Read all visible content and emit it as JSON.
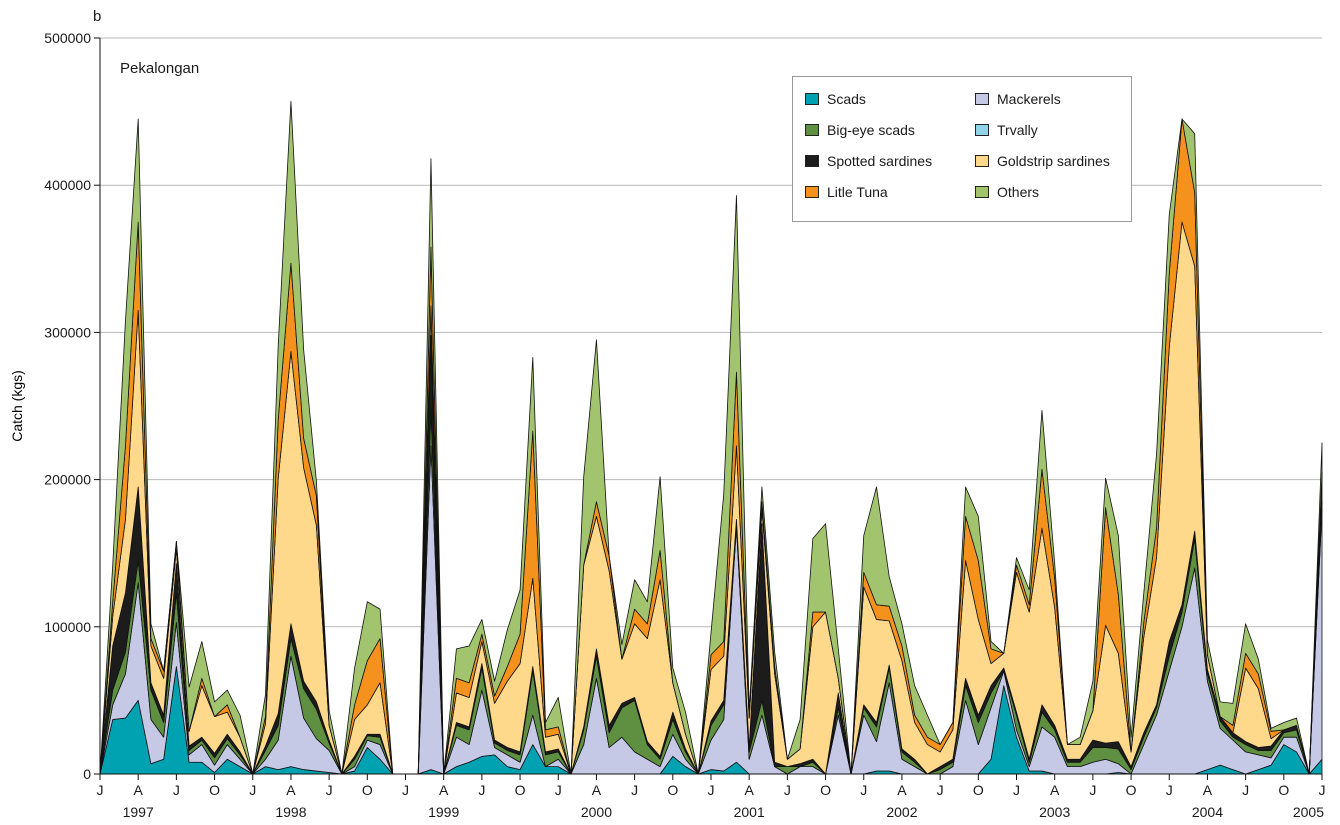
{
  "chart_data": {
    "type": "area",
    "stacked": true,
    "panel_label": "b",
    "annotation": "Pekalongan",
    "ylabel": "Catch (kgs)",
    "xlabel": "",
    "ylim": [
      0,
      500000
    ],
    "yticks": [
      0,
      100000,
      200000,
      300000,
      400000,
      500000
    ],
    "grid": "horizontal",
    "legend_position": "top-right",
    "month_tick_labels": [
      "J",
      "A",
      "J",
      "O"
    ],
    "year_labels": [
      "1997",
      "1998",
      "1999",
      "2000",
      "2001",
      "2002",
      "2003",
      "2004",
      "2005"
    ],
    "x_start": "1997-01",
    "months": 97,
    "series": [
      {
        "name": "Scads",
        "color": "#00a2b1",
        "values": [
          0,
          37000,
          38000,
          50000,
          7000,
          10000,
          73000,
          8000,
          8000,
          1000,
          10000,
          5000,
          0,
          5000,
          3000,
          5000,
          3000,
          2000,
          1000,
          0,
          2000,
          18000,
          10000,
          0,
          0,
          0,
          3000,
          0,
          5000,
          8000,
          12000,
          13000,
          5000,
          3000,
          20000,
          5000,
          5000,
          0,
          0,
          0,
          0,
          0,
          0,
          0,
          0,
          12000,
          5000,
          0,
          3000,
          2000,
          8000,
          0,
          0,
          0,
          0,
          0,
          0,
          0,
          0,
          0,
          0,
          2000,
          2000,
          0,
          0,
          0,
          0,
          0,
          0,
          0,
          10000,
          60000,
          25000,
          2000,
          2000,
          0,
          0,
          0,
          0,
          0,
          1000,
          0,
          0,
          0,
          0,
          0,
          0,
          3000,
          6000,
          3000,
          0,
          3000,
          6000,
          20000,
          15000,
          0,
          10000
        ]
      },
      {
        "name": "Mackerels",
        "color": "#c5c9e6",
        "values": [
          0,
          10000,
          30000,
          80000,
          30000,
          15000,
          30000,
          5000,
          12000,
          5000,
          10000,
          5000,
          0,
          5000,
          20000,
          75000,
          35000,
          22000,
          15000,
          0,
          3000,
          5000,
          10000,
          0,
          0,
          0,
          220000,
          0,
          20000,
          12000,
          45000,
          5000,
          8000,
          5000,
          20000,
          0,
          5000,
          0,
          20000,
          65000,
          18000,
          25000,
          15000,
          10000,
          5000,
          15000,
          5000,
          0,
          20000,
          35000,
          160000,
          10000,
          40000,
          5000,
          0,
          5000,
          5000,
          0,
          40000,
          0,
          40000,
          20000,
          60000,
          10000,
          5000,
          0,
          0,
          5000,
          50000,
          20000,
          35000,
          10000,
          5000,
          3000,
          30000,
          25000,
          5000,
          5000,
          8000,
          10000,
          6000,
          0,
          20000,
          40000,
          70000,
          100000,
          140000,
          60000,
          25000,
          20000,
          15000,
          10000,
          5000,
          5000,
          10000,
          0,
          170000
        ]
      },
      {
        "name": "Big-eye scads",
        "color": "#5f9042",
        "values": [
          0,
          10000,
          15000,
          15000,
          20000,
          10000,
          20000,
          3000,
          3000,
          5000,
          4000,
          3000,
          0,
          6000,
          10000,
          12000,
          20000,
          20000,
          5000,
          0,
          5000,
          3000,
          5000,
          0,
          0,
          0,
          25000,
          0,
          8000,
          10000,
          15000,
          3000,
          3000,
          5000,
          30000,
          8000,
          5000,
          0,
          10000,
          15000,
          10000,
          20000,
          35000,
          10000,
          5000,
          10000,
          5000,
          0,
          10000,
          10000,
          0,
          5000,
          10000,
          0,
          5000,
          0,
          3000,
          0,
          5000,
          0,
          5000,
          10000,
          10000,
          5000,
          3000,
          0,
          3000,
          3000,
          10000,
          15000,
          10000,
          0,
          10000,
          3000,
          10000,
          5000,
          3000,
          3000,
          10000,
          8000,
          10000,
          3000,
          5000,
          5000,
          10000,
          10000,
          20000,
          5000,
          5000,
          2000,
          5000,
          3000,
          5000,
          3000,
          5000,
          0,
          5000
        ]
      },
      {
        "name": "Spotted sardines",
        "color": "#1c1c1c",
        "values": [
          0,
          30000,
          40000,
          50000,
          5000,
          5000,
          20000,
          3000,
          2000,
          3000,
          3000,
          2000,
          0,
          3000,
          8000,
          10000,
          5000,
          5000,
          2000,
          0,
          2000,
          1000,
          2000,
          0,
          0,
          0,
          50000,
          0,
          2000,
          2000,
          3000,
          2000,
          2000,
          2000,
          3000,
          2000,
          2000,
          0,
          2000,
          5000,
          5000,
          3000,
          2000,
          2000,
          2000,
          5000,
          2000,
          0,
          3000,
          3000,
          5000,
          3000,
          120000,
          3000,
          0,
          2000,
          2000,
          0,
          10000,
          0,
          2000,
          3000,
          2000,
          2000,
          2000,
          0,
          2000,
          2000,
          5000,
          5000,
          5000,
          2000,
          2000,
          2000,
          5000,
          3000,
          2000,
          2000,
          5000,
          3000,
          5000,
          2000,
          3000,
          2000,
          10000,
          5000,
          5000,
          3000,
          3000,
          3000,
          2000,
          2000,
          3000,
          2000,
          3000,
          0,
          20000
        ]
      },
      {
        "name": "Trvally",
        "color": "#8fd4e6",
        "values": [
          0,
          0,
          0,
          0,
          0,
          0,
          0,
          0,
          0,
          0,
          0,
          0,
          0,
          0,
          0,
          0,
          0,
          0,
          0,
          0,
          0,
          0,
          0,
          0,
          0,
          0,
          0,
          0,
          0,
          0,
          0,
          0,
          0,
          0,
          0,
          0,
          0,
          0,
          0,
          0,
          0,
          0,
          0,
          0,
          0,
          0,
          0,
          0,
          0,
          0,
          0,
          0,
          0,
          0,
          0,
          0,
          0,
          0,
          0,
          0,
          0,
          0,
          0,
          0,
          0,
          0,
          0,
          0,
          0,
          0,
          0,
          0,
          0,
          0,
          0,
          0,
          0,
          0,
          0,
          0,
          0,
          0,
          0,
          0,
          0,
          0,
          0,
          0,
          0,
          0,
          0,
          0,
          0,
          0,
          0,
          0,
          0
        ]
      },
      {
        "name": "Goldstrip sardines",
        "color": "#fed88b",
        "values": [
          0,
          20000,
          50000,
          120000,
          25000,
          25000,
          10000,
          10000,
          35000,
          25000,
          15000,
          10000,
          0,
          15000,
          160000,
          185000,
          145000,
          120000,
          10000,
          0,
          25000,
          20000,
          35000,
          0,
          0,
          0,
          20000,
          0,
          20000,
          20000,
          15000,
          25000,
          45000,
          60000,
          60000,
          10000,
          10000,
          0,
          110000,
          90000,
          105000,
          30000,
          50000,
          70000,
          120000,
          20000,
          10000,
          0,
          35000,
          30000,
          50000,
          20000,
          10000,
          60000,
          5000,
          10000,
          90000,
          110000,
          10000,
          0,
          80000,
          70000,
          30000,
          60000,
          25000,
          20000,
          10000,
          20000,
          80000,
          65000,
          15000,
          10000,
          95000,
          100000,
          120000,
          80000,
          10000,
          10000,
          20000,
          80000,
          60000,
          10000,
          65000,
          100000,
          200000,
          260000,
          180000,
          10000,
          0,
          0,
          50000,
          40000,
          5000,
          0,
          0,
          0,
          0
        ]
      },
      {
        "name": "Litle Tuna",
        "color": "#f5921e",
        "values": [
          0,
          10000,
          50000,
          60000,
          5000,
          5000,
          5000,
          0,
          5000,
          0,
          5000,
          0,
          0,
          5000,
          40000,
          60000,
          20000,
          20000,
          0,
          0,
          10000,
          30000,
          30000,
          0,
          0,
          0,
          40000,
          0,
          10000,
          10000,
          5000,
          5000,
          10000,
          20000,
          100000,
          5000,
          5000,
          0,
          0,
          10000,
          10000,
          0,
          10000,
          10000,
          20000,
          0,
          0,
          0,
          10000,
          10000,
          50000,
          0,
          5000,
          5000,
          0,
          0,
          10000,
          0,
          0,
          0,
          10000,
          10000,
          10000,
          10000,
          5000,
          5000,
          5000,
          5000,
          30000,
          40000,
          10000,
          0,
          5000,
          5000,
          40000,
          20000,
          0,
          0,
          0,
          80000,
          40000,
          0,
          10000,
          20000,
          50000,
          70000,
          50000,
          0,
          0,
          5000,
          10000,
          10000,
          5000,
          0,
          0,
          0,
          0
        ]
      },
      {
        "name": "Others",
        "color": "#a2c46e",
        "values": [
          0,
          25000,
          85000,
          70000,
          10000,
          0,
          0,
          30000,
          25000,
          10000,
          10000,
          15000,
          0,
          15000,
          50000,
          110000,
          60000,
          10000,
          10000,
          0,
          25000,
          40000,
          20000,
          0,
          0,
          0,
          60000,
          0,
          20000,
          25000,
          10000,
          10000,
          25000,
          30000,
          50000,
          5000,
          20000,
          0,
          60000,
          110000,
          0,
          10000,
          20000,
          15000,
          50000,
          10000,
          15000,
          0,
          15000,
          100000,
          120000,
          5000,
          10000,
          10000,
          0,
          20000,
          50000,
          60000,
          20000,
          0,
          25000,
          80000,
          20000,
          15000,
          20000,
          15000,
          0,
          0,
          20000,
          30000,
          5000,
          0,
          5000,
          10000,
          40000,
          10000,
          0,
          5000,
          20000,
          20000,
          40000,
          10000,
          20000,
          50000,
          40000,
          0,
          40000,
          10000,
          10000,
          15000,
          20000,
          10000,
          2000,
          5000,
          5000,
          0,
          20000
        ]
      }
    ]
  }
}
